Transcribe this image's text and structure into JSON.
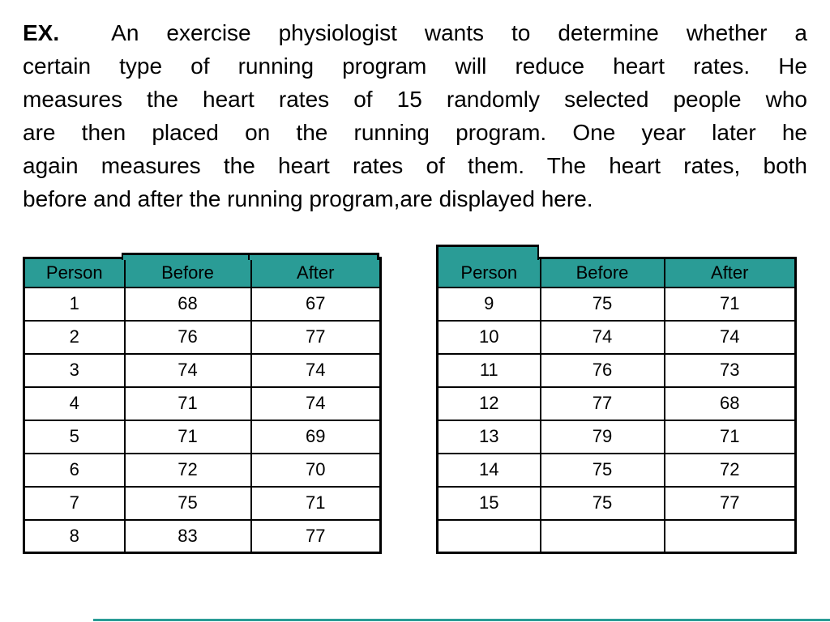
{
  "slide": {
    "label": "EX.",
    "lines": [
      "An exercise physiologist wants to determine whether a",
      "certain type of running program will reduce heart rates. He",
      "measures the heart rates of 15 randomly selected people who",
      "are then placed on the running program. One year later he",
      "again measures the heart rates of them. The heart rates, both",
      "before and after the running program,are displayed here."
    ]
  },
  "columns": [
    "Person",
    "Before",
    "After"
  ],
  "left_table": {
    "rows": [
      [
        "1",
        "68",
        "67"
      ],
      [
        "2",
        "76",
        "77"
      ],
      [
        "3",
        "74",
        "74"
      ],
      [
        "4",
        "71",
        "74"
      ],
      [
        "5",
        "71",
        "69"
      ],
      [
        "6",
        "72",
        "70"
      ],
      [
        "7",
        "75",
        "71"
      ],
      [
        "8",
        "83",
        "77"
      ]
    ]
  },
  "right_table": {
    "rows": [
      [
        "9",
        "75",
        "71"
      ],
      [
        "10",
        "74",
        "74"
      ],
      [
        "11",
        "76",
        "73"
      ],
      [
        "12",
        "77",
        "68"
      ],
      [
        "13",
        "79",
        "71"
      ],
      [
        "14",
        "75",
        "72"
      ],
      [
        "15",
        "75",
        "77"
      ],
      [
        "",
        "",
        ""
      ]
    ]
  },
  "colors": {
    "header_fill": "#2A9C96",
    "accent_line": "#2A9C96",
    "border": "#000000",
    "text": "#000000",
    "background": "#FFFFFF"
  }
}
